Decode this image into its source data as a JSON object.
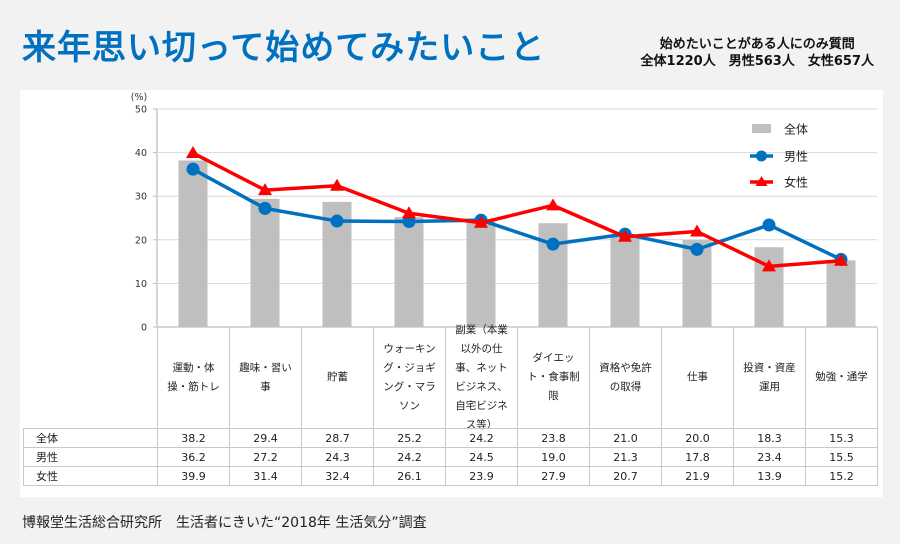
{
  "header": {
    "title": "来年思い切って始めてみたいこと",
    "note_line1": "始めたいことがある人にのみ質問",
    "note_line2": "全体1220人　男性563人　女性657人"
  },
  "footer": {
    "source": "博報堂生活総合研究所　生活者にきいた“2018年 生活気分”調査"
  },
  "colors": {
    "title": "#0070c0",
    "bar_all": "#bfbfbf",
    "male": "#0070c0",
    "female": "#ff0000",
    "grid": "#d9d9d9"
  },
  "chart_data": {
    "type": "bar",
    "title": "来年思い切って始めてみたいこと",
    "ylabel": "(%)",
    "xlabel": "",
    "ylim": [
      0,
      50
    ],
    "yticks": [
      0,
      10,
      20,
      30,
      40,
      50
    ],
    "grid": true,
    "legend_position": "top-right",
    "categories": [
      "運動・体\n操・筋トレ",
      "趣味・習い\n事",
      "貯蓄",
      "ウォーキン\nグ・ジョギ\nング・マラ\nソン",
      "副業（本業\n以外の仕\n事、ネット\nビジネス、\n自宅ビジネ\nス等）",
      "ダイエッ\nト・食事制\n限",
      "資格や免許\nの取得",
      "仕事",
      "投資・資産\n運用",
      "勉強・通学"
    ],
    "series": [
      {
        "name": "全体",
        "type": "bar",
        "values": [
          38.2,
          29.4,
          28.7,
          25.2,
          24.2,
          23.8,
          21.0,
          20.0,
          18.3,
          15.3
        ]
      },
      {
        "name": "男性",
        "type": "line",
        "marker": "circle",
        "values": [
          36.2,
          27.2,
          24.3,
          24.2,
          24.5,
          19.0,
          21.3,
          17.8,
          23.4,
          15.5
        ]
      },
      {
        "name": "女性",
        "type": "line",
        "marker": "triangle",
        "values": [
          39.9,
          31.4,
          32.4,
          26.1,
          23.9,
          27.9,
          20.7,
          21.9,
          13.9,
          15.2
        ]
      }
    ],
    "table_rows": [
      {
        "label": "全体",
        "values": [
          "38.2",
          "29.4",
          "28.7",
          "25.2",
          "24.2",
          "23.8",
          "21.0",
          "20.0",
          "18.3",
          "15.3"
        ]
      },
      {
        "label": "男性",
        "values": [
          "36.2",
          "27.2",
          "24.3",
          "24.2",
          "24.5",
          "19.0",
          "21.3",
          "17.8",
          "23.4",
          "15.5"
        ]
      },
      {
        "label": "女性",
        "values": [
          "39.9",
          "31.4",
          "32.4",
          "26.1",
          "23.9",
          "27.9",
          "20.7",
          "21.9",
          "13.9",
          "15.2"
        ]
      }
    ]
  }
}
